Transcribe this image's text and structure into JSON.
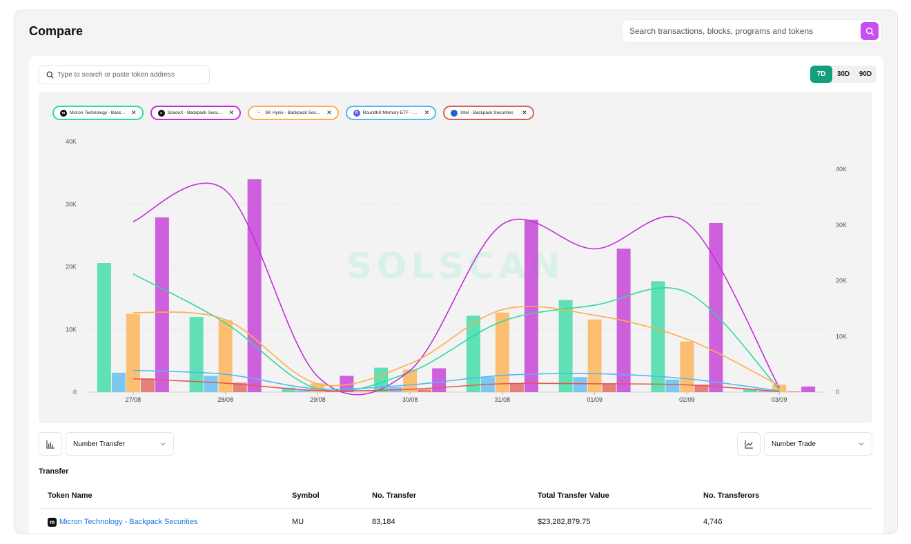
{
  "page": {
    "title": "Compare"
  },
  "header_search": {
    "placeholder": "Search transactions, blocks, programs and tokens",
    "icon": "search-icon"
  },
  "token_search": {
    "placeholder": "Type to search or paste token address",
    "icon": "search-icon"
  },
  "range_tabs": [
    {
      "label": "7D",
      "active": true
    },
    {
      "label": "30D",
      "active": false
    },
    {
      "label": "90D",
      "active": false
    }
  ],
  "tokens": [
    {
      "name": "Micron Technology - Backpack Securities",
      "color": "#2ed9a0",
      "logo_bg": "#111111",
      "logo_text": "m"
    },
    {
      "name": "SpaceX - Backpack Securities",
      "color": "#c22fd6",
      "logo_bg": "#111111",
      "logo_text": "x"
    },
    {
      "name": "SK Hynix - Backpack Securities",
      "color": "#ffad47",
      "logo_bg": "#ffffff",
      "logo_text": ""
    },
    {
      "name": "Roundhill Memory ETF - Backpack Securities",
      "color": "#55b8f2",
      "logo_bg": "#5b5fe8",
      "logo_text": "R"
    },
    {
      "name": "Intel - Backpack Securities",
      "color": "#e05a55",
      "logo_bg": "#1767c6",
      "logo_text": "intel"
    }
  ],
  "watermark": "SOLSCAN",
  "chart_data": {
    "type": "bar",
    "categories": [
      "27/08",
      "28/08",
      "29/08",
      "30/08",
      "31/08",
      "01/09",
      "02/09",
      "03/09"
    ],
    "left_axis": {
      "ticks": [
        "0",
        "10K",
        "20K",
        "30K",
        "40K"
      ],
      "ylim": [
        0,
        40000
      ]
    },
    "right_axis": {
      "ticks": [
        "0",
        "10K",
        "20K",
        "30K",
        "40K"
      ],
      "ylim": [
        0,
        40000
      ]
    },
    "grid": true,
    "bar_series": [
      {
        "name": "Micron Technology - Backpack Securities",
        "values": [
          20600,
          12000,
          700,
          3900,
          12200,
          14700,
          17700,
          500
        ]
      },
      {
        "name": "Roundhill Memory ETF - Backpack Securities",
        "values": [
          3100,
          2600,
          300,
          800,
          2400,
          2400,
          2000,
          200
        ]
      },
      {
        "name": "SK Hynix - Backpack Securities",
        "values": [
          12500,
          11500,
          1400,
          3600,
          12700,
          11600,
          8100,
          1200
        ]
      },
      {
        "name": "Intel - Backpack Securities",
        "values": [
          2200,
          1500,
          200,
          400,
          1400,
          1300,
          1200,
          100
        ]
      },
      {
        "name": "SpaceX - Backpack Securities",
        "values": [
          27900,
          34000,
          2600,
          3800,
          27500,
          22900,
          27000,
          900
        ]
      }
    ],
    "line_series": [
      {
        "name": "Micron Technology - Backpack Securities",
        "values": [
          21200,
          12400,
          600,
          3600,
          12700,
          15600,
          17900,
          500
        ]
      },
      {
        "name": "SpaceX - Backpack Securities",
        "values": [
          30600,
          36200,
          2800,
          3900,
          30100,
          25700,
          30400,
          800
        ]
      },
      {
        "name": "SK Hynix - Backpack Securities",
        "values": [
          14300,
          13000,
          1500,
          5100,
          14800,
          13800,
          9500,
          1200
        ]
      },
      {
        "name": "Roundhill Memory ETF - Backpack Securities",
        "values": [
          3900,
          3200,
          600,
          1300,
          3000,
          3300,
          2400,
          200
        ]
      },
      {
        "name": "Intel - Backpack Securities",
        "values": [
          2400,
          1600,
          300,
          500,
          1500,
          1500,
          1300,
          100
        ]
      }
    ]
  },
  "controls": {
    "left_select": "Number Transfer",
    "right_select": "Number Trade",
    "left_icon": "bar-chart-icon",
    "right_icon": "line-chart-icon"
  },
  "transfer": {
    "title": "Transfer",
    "columns": [
      "Token Name",
      "Symbol",
      "No. Transfer",
      "Total Transfer Value",
      "No. Transferors"
    ],
    "rows": [
      {
        "name": "Micron Technology - Backpack Securities",
        "symbol": "MU",
        "transfers": "83,184",
        "value": "$23,282,879.75",
        "transferors": "4,746"
      }
    ]
  }
}
